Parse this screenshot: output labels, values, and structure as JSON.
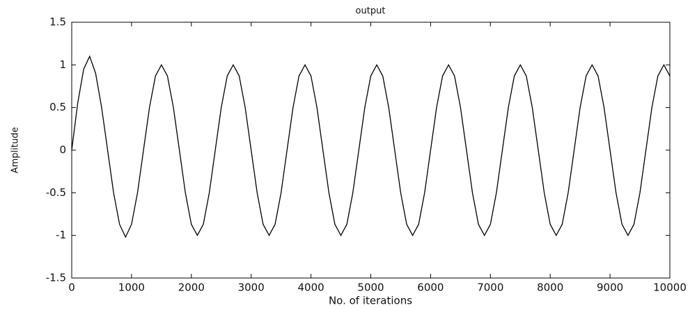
{
  "chart_data": {
    "type": "line",
    "title": "output",
    "xlabel": "No. of iterations",
    "ylabel": "Amplitude",
    "x": [
      0,
      100,
      200,
      300,
      400,
      500,
      600,
      700,
      800,
      900,
      1000,
      1100,
      1200,
      1300,
      1400,
      1500,
      1600,
      1700,
      1800,
      1900,
      2000,
      2100,
      2200,
      2300,
      2400,
      2500,
      2600,
      2700,
      2800,
      2900,
      3000,
      3100,
      3200,
      3300,
      3400,
      3500,
      3600,
      3700,
      3800,
      3900,
      4000,
      4100,
      4200,
      4300,
      4400,
      4500,
      4600,
      4700,
      4800,
      4900,
      5000,
      5100,
      5200,
      5300,
      5400,
      5500,
      5600,
      5700,
      5800,
      5900,
      6000,
      6100,
      6200,
      6300,
      6400,
      6500,
      6600,
      6700,
      6800,
      6900,
      7000,
      7100,
      7200,
      7300,
      7400,
      7500,
      7600,
      7700,
      7800,
      7900,
      8000,
      8100,
      8200,
      8300,
      8400,
      8500,
      8600,
      8700,
      8800,
      8900,
      9000,
      9100,
      9200,
      9300,
      9400,
      9500,
      9600,
      9700,
      9800,
      9900,
      10000
    ],
    "series": [
      {
        "name": "output",
        "color": "#000000",
        "values": [
          0,
          0.55,
          0.95,
          1.1,
          0.9,
          0.5,
          0,
          -0.5,
          -0.87,
          -1.02,
          -0.87,
          -0.5,
          0,
          0.5,
          0.87,
          1,
          0.87,
          0.5,
          0,
          -0.5,
          -0.87,
          -1,
          -0.87,
          -0.5,
          0,
          0.5,
          0.87,
          1,
          0.87,
          0.5,
          0,
          -0.5,
          -0.87,
          -1,
          -0.87,
          -0.5,
          0,
          0.5,
          0.87,
          1,
          0.87,
          0.5,
          0,
          -0.5,
          -0.87,
          -1,
          -0.87,
          -0.5,
          0,
          0.5,
          0.87,
          1,
          0.87,
          0.5,
          0,
          -0.5,
          -0.87,
          -1,
          -0.87,
          -0.5,
          0,
          0.5,
          0.87,
          1,
          0.87,
          0.5,
          0,
          -0.5,
          -0.87,
          -1,
          -0.87,
          -0.5,
          0,
          0.5,
          0.87,
          1,
          0.87,
          0.5,
          0,
          -0.5,
          -0.87,
          -1,
          -0.87,
          -0.5,
          0,
          0.5,
          0.87,
          1,
          0.87,
          0.5,
          0,
          -0.5,
          -0.87,
          -1,
          -0.87,
          -0.5,
          0,
          0.5,
          0.87,
          1,
          0.87
        ]
      }
    ],
    "xlim": [
      0,
      10000
    ],
    "xticks": [
      0,
      1000,
      2000,
      3000,
      4000,
      5000,
      6000,
      7000,
      8000,
      9000,
      10000
    ],
    "ylim": [
      -1.5,
      1.5
    ],
    "yticks": [
      -1.5,
      -1,
      -0.5,
      0,
      0.5,
      1,
      1.5
    ],
    "grid": false
  }
}
